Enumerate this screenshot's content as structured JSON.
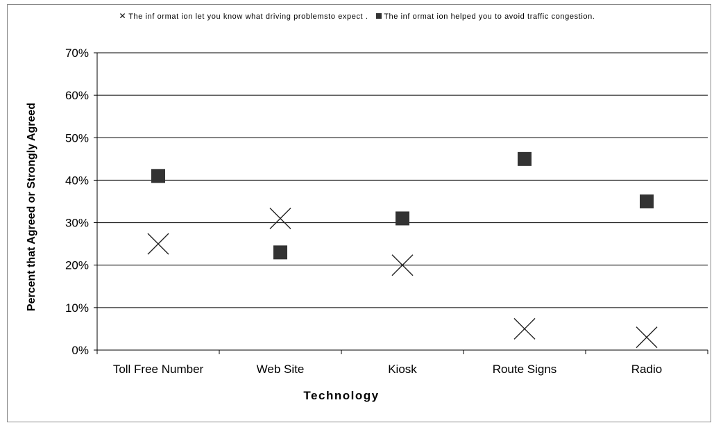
{
  "chart_data": {
    "type": "scatter",
    "categories": [
      "Toll Free Number",
      "Web Site",
      "Kiosk",
      "Route Signs",
      "Radio"
    ],
    "series": [
      {
        "name": "The information let you know what driving problems to expect.",
        "marker": "x",
        "values": [
          0.25,
          0.31,
          0.2,
          0.05,
          0.03
        ]
      },
      {
        "name": "The information helped you to avoid traffic congestion.",
        "marker": "square",
        "values": [
          0.41,
          0.23,
          0.31,
          0.45,
          0.35
        ]
      }
    ],
    "xlabel": "Technology",
    "ylabel": "Percent that Agreed or Strongly Agreed",
    "ylim": [
      0,
      0.7
    ],
    "yticks": [
      "0%",
      "10%",
      "20%",
      "30%",
      "40%",
      "50%",
      "60%",
      "70%"
    ],
    "grid": true,
    "legend_position": "top",
    "colors": {
      "square": "#333333",
      "x": "#222222",
      "grid": "#000000"
    }
  },
  "legend": {
    "x_symbol": "✕",
    "series1": "The inf ormat ion let you know what driving problemsto expect .",
    "series2": "The inf ormat ion helped you to avoid traffic congestion."
  }
}
